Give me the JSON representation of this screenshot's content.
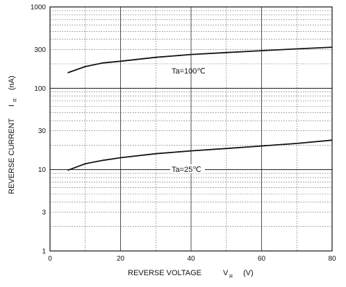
{
  "chart_data": {
    "type": "line",
    "x_scale": "linear",
    "y_scale": "log",
    "xlim": [
      0,
      80
    ],
    "ylim": [
      1,
      1000
    ],
    "x_ticks": [
      0,
      20,
      40,
      60,
      80
    ],
    "x_tick_labels": [
      "0",
      "20",
      "40",
      "60",
      "80"
    ],
    "y_ticks": [
      1,
      3,
      10,
      30,
      100,
      300,
      1000
    ],
    "y_tick_labels": [
      "1",
      "3",
      "10",
      "30",
      "100",
      "300",
      "1000"
    ],
    "grid": true,
    "xlabel": {
      "main": "REVERSE VOLTAGE",
      "symbol": "V",
      "subscript": "R",
      "unit": "(V)"
    },
    "ylabel": {
      "main": "REVERSE CURRENT",
      "symbol": "I",
      "subscript": "R",
      "unit": "(nA)"
    },
    "series": [
      {
        "name": "Ta=100℃",
        "x": [
          5,
          10,
          15,
          20,
          30,
          40,
          50,
          60,
          70,
          80
        ],
        "y": [
          155,
          185,
          205,
          215,
          240,
          260,
          275,
          290,
          305,
          320
        ]
      },
      {
        "name": "Ta=25℃",
        "x": [
          5,
          10,
          15,
          20,
          30,
          40,
          50,
          60,
          70,
          80
        ],
        "y": [
          9.8,
          11.8,
          13.0,
          14.0,
          15.7,
          17.0,
          18.2,
          19.5,
          21.0,
          23.0
        ]
      }
    ]
  }
}
